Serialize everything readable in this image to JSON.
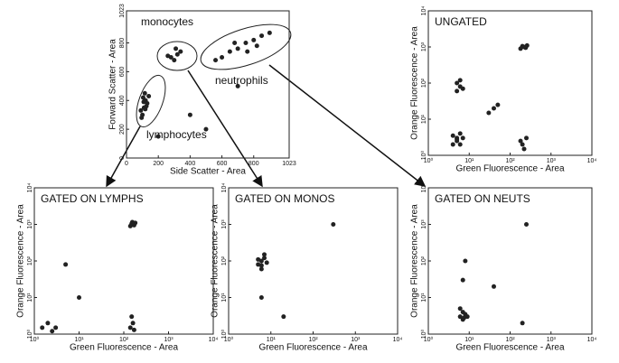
{
  "chart_data": [
    {
      "type": "scatter",
      "xlabel": "Side Scatter - Area",
      "ylabel": "Forward Scatter - Area",
      "annotations": [
        "monocytes",
        "neutrophils",
        "lymphocytes"
      ],
      "xlim": [
        0,
        1023
      ],
      "ylim": [
        0,
        1023
      ],
      "xticks": [
        0,
        200,
        400,
        600,
        800,
        1023
      ],
      "yticks": [
        0,
        200,
        400,
        600,
        800,
        1023
      ],
      "series": [
        {
          "color": "#222222",
          "x": [
            100,
            110,
            120,
            105,
            125,
            90,
            115,
            130,
            95,
            140,
            108,
            118,
            280,
            320,
            300,
            340,
            260,
            310,
            600,
            650,
            700,
            750,
            800,
            850,
            900,
            680,
            760,
            820,
            560,
            400,
            500,
            200,
            700
          ],
          "values": [
            300,
            350,
            400,
            420,
            360,
            330,
            450,
            380,
            280,
            430,
            390,
            340,
            700,
            720,
            680,
            740,
            710,
            760,
            700,
            740,
            760,
            800,
            820,
            850,
            870,
            800,
            740,
            780,
            680,
            300,
            200,
            150,
            500
          ]
        }
      ]
    },
    {
      "type": "scatter",
      "title": "UNGATED",
      "xlabel": "Green Fluorescence - Area",
      "ylabel": "Orange Fluorescence - Area",
      "log": true,
      "xlim": [
        1,
        10000
      ],
      "ylim": [
        1,
        10000
      ],
      "xticks": [
        {
          "value": 1,
          "label": "10⁰"
        },
        {
          "value": 10,
          "label": "10¹"
        },
        {
          "value": 100,
          "label": "10²"
        },
        {
          "value": 1000,
          "label": "10³"
        },
        {
          "value": 10000,
          "label": "10⁴"
        }
      ],
      "yticks": [
        {
          "value": 1,
          "label": "10⁰"
        },
        {
          "value": 10,
          "label": "10¹"
        },
        {
          "value": 100,
          "label": "10²"
        },
        {
          "value": 1000,
          "label": "10³"
        },
        {
          "value": 10000,
          "label": "10⁴"
        }
      ],
      "series": [
        {
          "color": "#222222",
          "x": [
            4,
            5,
            6,
            5,
            7,
            4,
            6,
            5,
            5,
            6,
            5,
            7,
            6,
            180,
            220,
            260,
            200,
            240,
            200,
            250,
            220,
            180,
            30,
            40,
            50
          ],
          "values": [
            2,
            3,
            4,
            2.5,
            3,
            3.5,
            2,
            2.8,
            60,
            80,
            100,
            70,
            120,
            900,
            1000,
            1100,
            1050,
            950,
            2,
            3,
            1.5,
            2.5,
            15,
            20,
            25
          ]
        }
      ]
    },
    {
      "type": "scatter",
      "title": "GATED ON LYMPHS",
      "xlabel": "Green Fluorescence - Area",
      "ylabel": "Orange Fluorescence - Area",
      "log": true,
      "xlim": [
        1,
        10000
      ],
      "ylim": [
        1,
        10000
      ],
      "xticks": [
        {
          "value": 1,
          "label": "10⁰"
        },
        {
          "value": 10,
          "label": "10¹"
        },
        {
          "value": 100,
          "label": "10²"
        },
        {
          "value": 1000,
          "label": "10³"
        },
        {
          "value": 10000,
          "label": "10⁴"
        }
      ],
      "yticks": [
        {
          "value": 1,
          "label": "10⁰"
        },
        {
          "value": 10,
          "label": "10¹"
        },
        {
          "value": 100,
          "label": "10²"
        },
        {
          "value": 1000,
          "label": "10³"
        },
        {
          "value": 10000,
          "label": "10⁴"
        }
      ],
      "series": [
        {
          "color": "#222222",
          "x": [
            140,
            160,
            180,
            150,
            170,
            155,
            1.5,
            2,
            3,
            2.5,
            140,
            160,
            150,
            170,
            5,
            10
          ],
          "values": [
            900,
            1000,
            1100,
            1050,
            950,
            1150,
            1.5,
            2,
            1.5,
            1.2,
            1.5,
            2,
            3,
            1.3,
            80,
            10
          ]
        }
      ]
    },
    {
      "type": "scatter",
      "title": "GATED ON MONOS",
      "xlabel": "Green Fluorescence - Area",
      "ylabel": "Orange Fluorescence - Area",
      "log": true,
      "xlim": [
        1,
        10000
      ],
      "ylim": [
        1,
        10000
      ],
      "xticks": [
        {
          "value": 1,
          "label": "10⁰"
        },
        {
          "value": 10,
          "label": "10¹"
        },
        {
          "value": 100,
          "label": "10²"
        },
        {
          "value": 1000,
          "label": "10³"
        },
        {
          "value": 10000,
          "label": "10⁴"
        }
      ],
      "yticks": [
        {
          "value": 1,
          "label": "10⁰"
        },
        {
          "value": 10,
          "label": "10¹"
        },
        {
          "value": 100,
          "label": "10²"
        },
        {
          "value": 1000,
          "label": "10³"
        },
        {
          "value": 10000,
          "label": "10⁴"
        }
      ],
      "series": [
        {
          "color": "#222222",
          "x": [
            5,
            6,
            7,
            8,
            6,
            7,
            5,
            6,
            6,
            300,
            20
          ],
          "values": [
            80,
            100,
            120,
            90,
            60,
            150,
            110,
            75,
            10,
            1000,
            3
          ]
        }
      ]
    },
    {
      "type": "scatter",
      "title": "GATED ON NEUTS",
      "xlabel": "Green Fluorescence - Area",
      "ylabel": "Orange Fluorescence - Area",
      "log": true,
      "xlim": [
        1,
        10000
      ],
      "ylim": [
        1,
        10000
      ],
      "xticks": [
        {
          "value": 1,
          "label": "10⁰"
        },
        {
          "value": 10,
          "label": "10¹"
        },
        {
          "value": 100,
          "label": "10²"
        },
        {
          "value": 1000,
          "label": "10³"
        },
        {
          "value": 10000,
          "label": "10⁴"
        }
      ],
      "yticks": [
        {
          "value": 1,
          "label": "10⁰"
        },
        {
          "value": 10,
          "label": "10¹"
        },
        {
          "value": 100,
          "label": "10²"
        },
        {
          "value": 1000,
          "label": "10³"
        },
        {
          "value": 10000,
          "label": "10⁴"
        }
      ],
      "series": [
        {
          "color": "#222222",
          "x": [
            6,
            7,
            8,
            7,
            6,
            9,
            7.5,
            7,
            8,
            40,
            250,
            200
          ],
          "values": [
            3,
            4,
            3.5,
            2.5,
            5,
            3,
            2.8,
            30,
            100,
            20,
            1000,
            2
          ]
        }
      ]
    }
  ]
}
